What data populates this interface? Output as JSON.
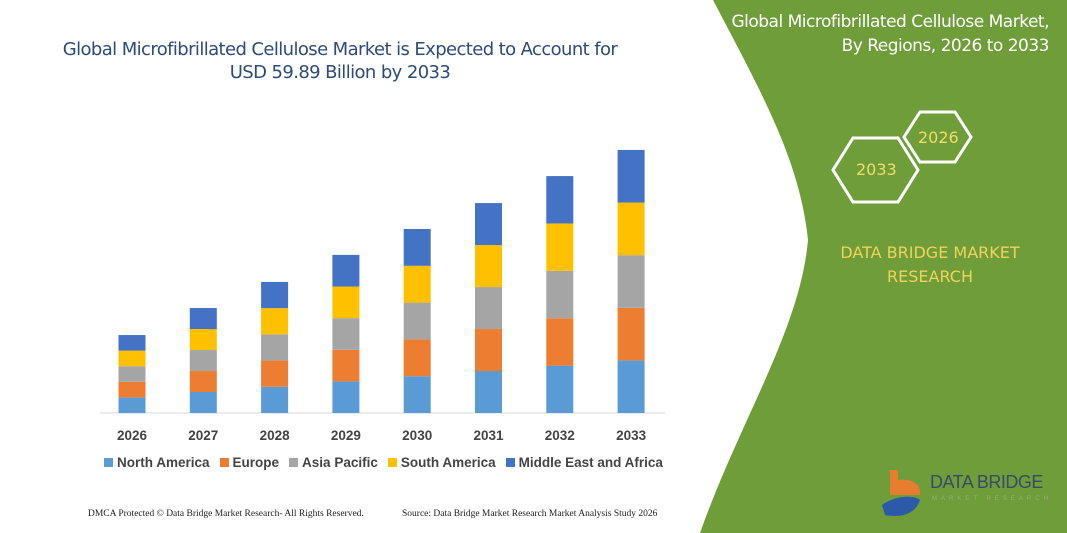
{
  "title": "Global Microfibrillated Cellulose Market is Expected to Account for USD 59.89 Billion by 2033",
  "side_panel": {
    "title": "Global Microfibrillated Cellulose Market, By Regions, 2026 to 2033",
    "hex_start": "2026",
    "hex_end": "2033",
    "brand_text": "DATA BRIDGE MARKET RESEARCH",
    "logo_text": "DATA BRIDGE",
    "logo_subtext": "MARKET RESEARCH",
    "panel_color": "#6f9d3a"
  },
  "footer": {
    "left": "DMCA Protected © Data Bridge Market Research- All Rights Reserved.",
    "right": "Source: Data Bridge Market Research Market Analysis Study 2026"
  },
  "chart_data": {
    "type": "bar",
    "stacked": true,
    "categories": [
      "2026",
      "2027",
      "2028",
      "2029",
      "2030",
      "2031",
      "2032",
      "2033"
    ],
    "series": [
      {
        "name": "North America",
        "color": "#5b9bd5",
        "values": [
          3.55,
          4.78,
          5.97,
          7.2,
          8.38,
          9.56,
          10.79,
          11.98
        ]
      },
      {
        "name": "Europe",
        "color": "#ed7d31",
        "values": [
          3.55,
          4.78,
          5.97,
          7.2,
          8.38,
          9.56,
          10.79,
          11.98
        ]
      },
      {
        "name": "Asia Pacific",
        "color": "#a5a5a5",
        "values": [
          3.55,
          4.78,
          5.97,
          7.2,
          8.38,
          9.56,
          10.79,
          11.98
        ]
      },
      {
        "name": "South America",
        "color": "#ffc000",
        "values": [
          3.55,
          4.78,
          5.97,
          7.2,
          8.38,
          9.56,
          10.79,
          11.98
        ]
      },
      {
        "name": "Middle East and Africa",
        "color": "#4472c4",
        "values": [
          3.55,
          4.78,
          5.97,
          7.2,
          8.38,
          9.56,
          10.79,
          11.97
        ]
      }
    ],
    "ylim": [
      0,
      59.89
    ],
    "grid": false,
    "legend": "bottom"
  }
}
